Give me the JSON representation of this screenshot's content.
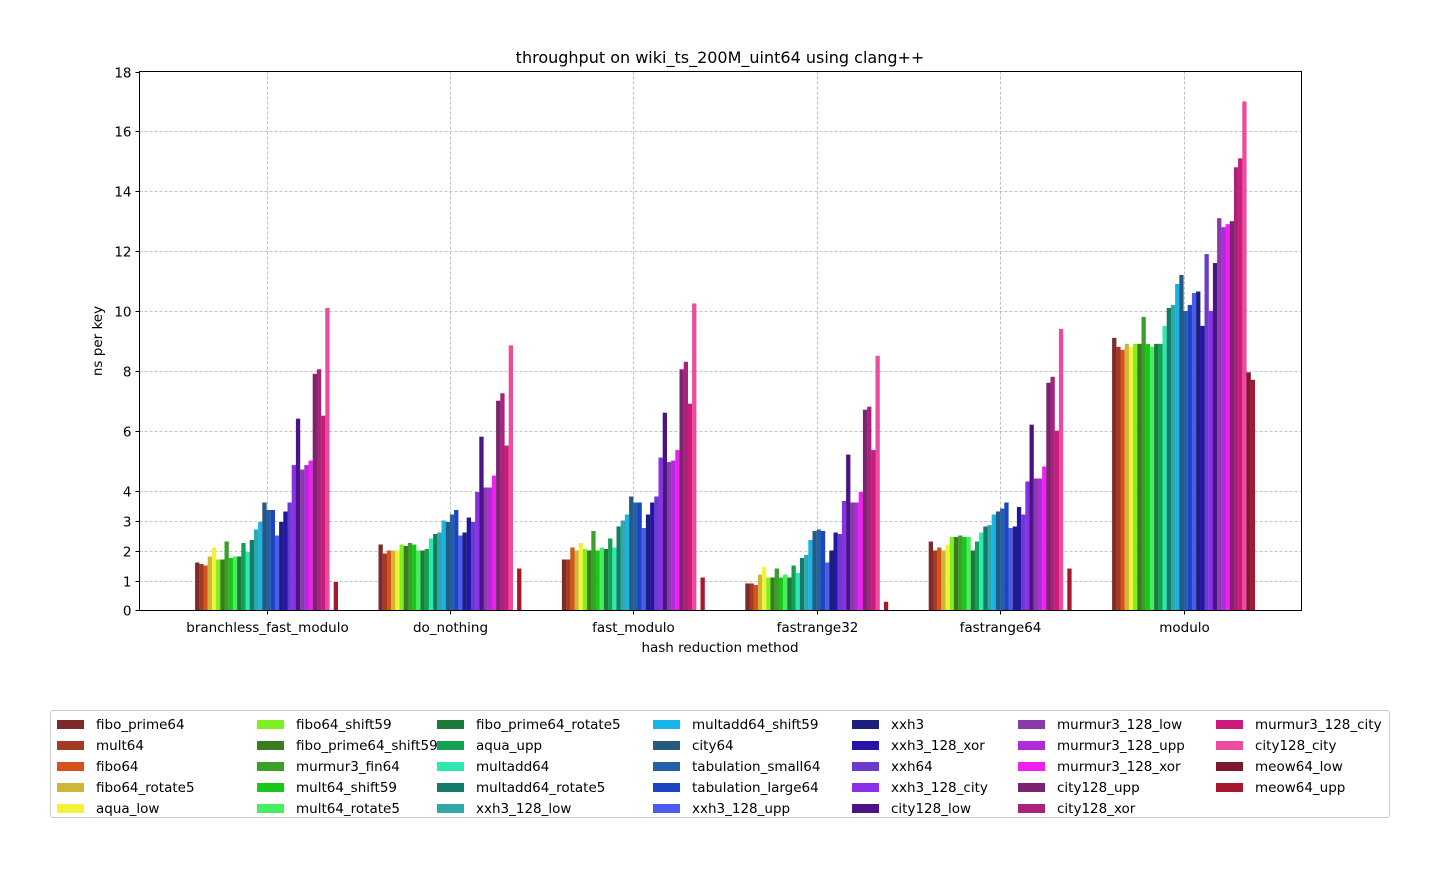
{
  "chart_data": {
    "type": "bar",
    "title": "throughput on wiki_ts_200M_uint64 using clang++",
    "xlabel": "hash reduction method",
    "ylabel": "ns per key",
    "yscale": "mixed-linear",
    "ylim": [
      0,
      18
    ],
    "yticks": [
      0,
      1,
      2,
      3,
      4,
      6,
      8,
      10,
      12,
      14,
      16,
      18
    ],
    "grid": true,
    "legend_position": "bottom",
    "categories": [
      "branchless_fast_modulo",
      "do_nothing",
      "fast_modulo",
      "fastrange32",
      "fastrange64",
      "modulo"
    ],
    "series": [
      {
        "name": "fibo_prime64",
        "color": "#7f2a2a",
        "values": [
          1.6,
          2.2,
          1.7,
          0.9,
          2.3,
          9.1
        ]
      },
      {
        "name": "mult64",
        "color": "#a33a24",
        "values": [
          1.55,
          1.9,
          1.7,
          0.9,
          2.0,
          8.8
        ]
      },
      {
        "name": "fibo64",
        "color": "#d6521c",
        "values": [
          1.5,
          2.0,
          2.1,
          0.85,
          2.1,
          8.7
        ]
      },
      {
        "name": "fibo64_rotate5",
        "color": "#cdb63a",
        "values": [
          1.8,
          2.0,
          2.0,
          1.2,
          2.0,
          8.9
        ]
      },
      {
        "name": "aqua_low",
        "color": "#f2f23a",
        "values": [
          2.1,
          2.0,
          2.25,
          1.45,
          2.2,
          8.8
        ]
      },
      {
        "name": "fibo64_shift59",
        "color": "#7cf020",
        "values": [
          1.7,
          2.2,
          2.05,
          1.1,
          2.45,
          8.9
        ]
      },
      {
        "name": "fibo_prime64_shift59",
        "color": "#3c7a22",
        "values": [
          1.7,
          2.15,
          2.0,
          1.1,
          2.45,
          8.9
        ]
      },
      {
        "name": "murmur3_fin64",
        "color": "#3aa02a",
        "values": [
          2.3,
          2.25,
          2.65,
          1.4,
          2.5,
          9.8
        ]
      },
      {
        "name": "mult64_shift59",
        "color": "#18c818",
        "values": [
          1.75,
          2.2,
          2.0,
          1.1,
          2.45,
          8.9
        ]
      },
      {
        "name": "mult64_rotate5",
        "color": "#48ee60",
        "values": [
          1.8,
          2.0,
          2.1,
          1.2,
          2.45,
          8.8
        ]
      },
      {
        "name": "fibo_prime64_rotate5",
        "color": "#1c7a3a",
        "values": [
          1.8,
          2.0,
          2.05,
          1.1,
          2.0,
          8.9
        ]
      },
      {
        "name": "aqua_upp",
        "color": "#12a052",
        "values": [
          2.25,
          2.05,
          2.4,
          1.5,
          2.3,
          8.9
        ]
      },
      {
        "name": "multadd64",
        "color": "#2ee8b0",
        "values": [
          1.95,
          2.4,
          2.1,
          1.25,
          2.6,
          9.5
        ]
      },
      {
        "name": "multadd64_rotate5",
        "color": "#147a6a",
        "values": [
          2.35,
          2.55,
          2.8,
          1.75,
          2.8,
          10.1
        ]
      },
      {
        "name": "xxh3_128_low",
        "color": "#30a8a8",
        "values": [
          2.7,
          2.6,
          3.0,
          1.85,
          2.85,
          10.2
        ]
      },
      {
        "name": "multadd64_shift59",
        "color": "#18b4e8",
        "values": [
          2.95,
          3.0,
          3.2,
          2.35,
          3.2,
          10.9
        ]
      },
      {
        "name": "city64",
        "color": "#265a80",
        "values": [
          3.6,
          2.95,
          3.8,
          2.65,
          3.3,
          11.2
        ]
      },
      {
        "name": "tabulation_small64",
        "color": "#2460a8",
        "values": [
          3.35,
          3.2,
          3.6,
          2.7,
          3.4,
          10.0
        ]
      },
      {
        "name": "tabulation_large64",
        "color": "#1c46c0",
        "values": [
          3.35,
          3.35,
          3.6,
          2.65,
          3.6,
          10.2
        ]
      },
      {
        "name": "xxh3_128_upp",
        "color": "#4c5cf0",
        "values": [
          2.5,
          2.5,
          2.75,
          1.6,
          2.75,
          10.6
        ]
      },
      {
        "name": "xxh3",
        "color": "#1c207a",
        "values": [
          2.95,
          2.6,
          3.2,
          2.0,
          2.8,
          10.65
        ]
      },
      {
        "name": "xxh3_128_xor",
        "color": "#2414a8",
        "values": [
          3.3,
          3.1,
          3.6,
          2.6,
          3.45,
          9.5
        ]
      },
      {
        "name": "xxh64",
        "color": "#6a3ccc",
        "values": [
          3.6,
          2.95,
          3.8,
          2.55,
          3.2,
          11.9
        ]
      },
      {
        "name": "xxh3_128_city",
        "color": "#8a30e8",
        "values": [
          4.85,
          3.95,
          5.1,
          3.65,
          4.3,
          10.0
        ]
      },
      {
        "name": "city128_low",
        "color": "#4a1486",
        "values": [
          6.4,
          5.8,
          6.6,
          5.2,
          6.2,
          11.6
        ]
      },
      {
        "name": "murmur3_128_low",
        "color": "#8a3aaa",
        "values": [
          4.7,
          4.1,
          4.95,
          3.6,
          4.4,
          13.1
        ]
      },
      {
        "name": "murmur3_128_upp",
        "color": "#b02cd8",
        "values": [
          4.85,
          4.1,
          5.0,
          3.6,
          4.4,
          12.8
        ]
      },
      {
        "name": "murmur3_128_xor",
        "color": "#f020f0",
        "values": [
          5.0,
          4.5,
          5.35,
          3.95,
          4.8,
          12.9
        ]
      },
      {
        "name": "city128_upp",
        "color": "#7c2470",
        "values": [
          7.9,
          7.0,
          8.05,
          6.7,
          7.6,
          13.0
        ]
      },
      {
        "name": "city128_xor",
        "color": "#a8247a",
        "values": [
          8.05,
          7.25,
          8.3,
          6.8,
          7.8,
          14.8
        ]
      },
      {
        "name": "murmur3_128_city",
        "color": "#cc1a7a",
        "values": [
          6.5,
          5.5,
          6.9,
          5.35,
          6.0,
          15.1
        ]
      },
      {
        "name": "city128_city",
        "color": "#ec4ca0",
        "values": [
          10.1,
          8.85,
          10.25,
          8.5,
          9.4,
          17.0
        ]
      },
      {
        "name": "meow64_low",
        "color": "#7c1830",
        "values": [
          0.0,
          0.0,
          0.0,
          0.0,
          0.0,
          7.95
        ]
      },
      {
        "name": "meow64_upp",
        "color": "#a8182c",
        "values": [
          0.95,
          1.4,
          1.1,
          0.28,
          1.4,
          7.7
        ]
      }
    ]
  }
}
